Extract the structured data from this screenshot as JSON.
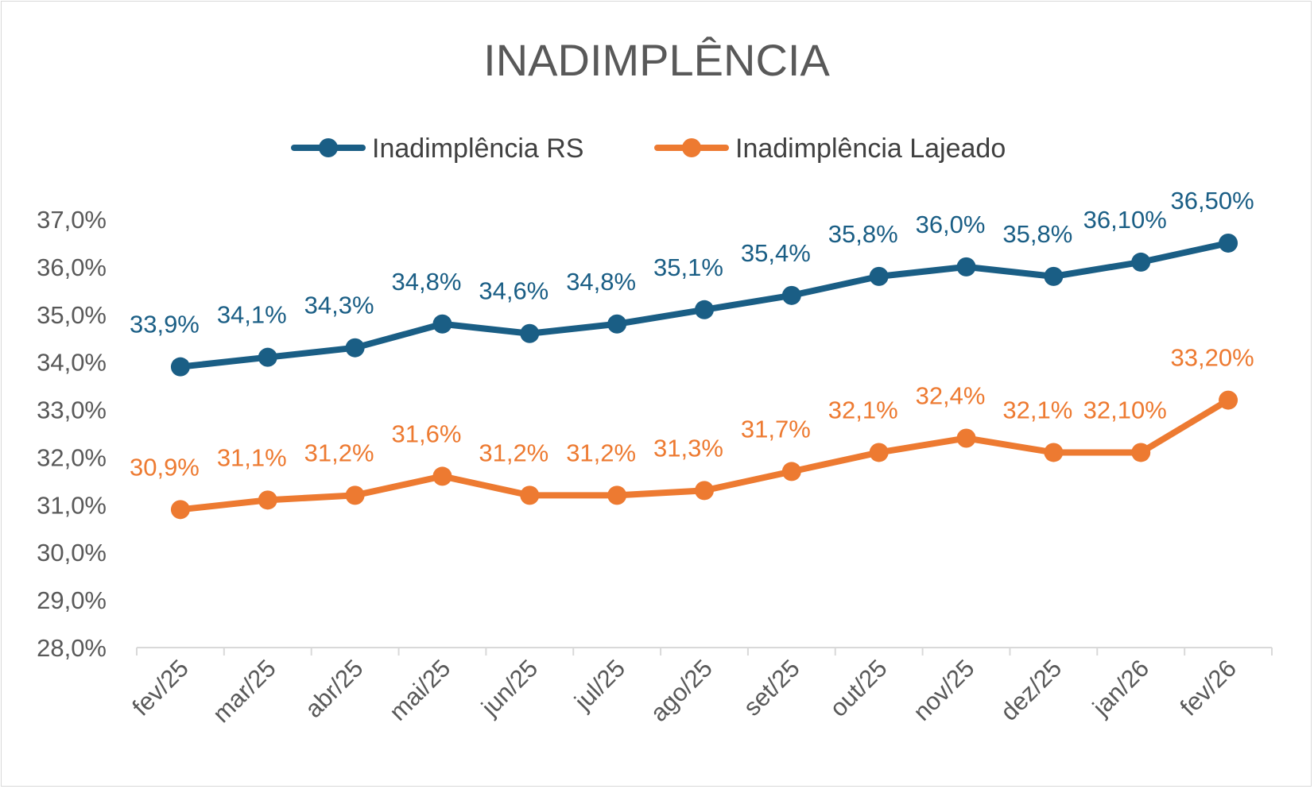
{
  "chart_data": {
    "type": "line",
    "title": "INADIMPLÊNCIA",
    "categories": [
      "fev/25",
      "mar/25",
      "abr/25",
      "mai/25",
      "jun/25",
      "jul/25",
      "ago/25",
      "set/25",
      "out/25",
      "nov/25",
      "dez/25",
      "jan/26",
      "fev/26"
    ],
    "ylim": [
      28.0,
      37.0
    ],
    "yticks": [
      "28,0%",
      "29,0%",
      "30,0%",
      "31,0%",
      "32,0%",
      "33,0%",
      "34,0%",
      "35,0%",
      "36,0%",
      "37,0%"
    ],
    "grid": false,
    "legend_position": "top",
    "series": [
      {
        "name": "Inadimplência RS",
        "color": "#1a5e85",
        "values": [
          33.9,
          34.1,
          34.3,
          34.8,
          34.6,
          34.8,
          35.1,
          35.4,
          35.8,
          36.0,
          35.8,
          36.1,
          36.5
        ],
        "labels": [
          "33,9%",
          "34,1%",
          "34,3%",
          "34,8%",
          "34,6%",
          "34,8%",
          "35,1%",
          "35,4%",
          "35,8%",
          "36,0%",
          "35,8%",
          "36,10%",
          "36,50%"
        ]
      },
      {
        "name": "Inadimplência Lajeado",
        "color": "#ed7a31",
        "values": [
          30.9,
          31.1,
          31.2,
          31.6,
          31.2,
          31.2,
          31.3,
          31.7,
          32.1,
          32.4,
          32.1,
          32.1,
          33.2
        ],
        "labels": [
          "30,9%",
          "31,1%",
          "31,2%",
          "31,6%",
          "31,2%",
          "31,2%",
          "31,3%",
          "31,7%",
          "32,1%",
          "32,4%",
          "32,1%",
          "32,10%",
          "33,20%"
        ]
      }
    ]
  }
}
